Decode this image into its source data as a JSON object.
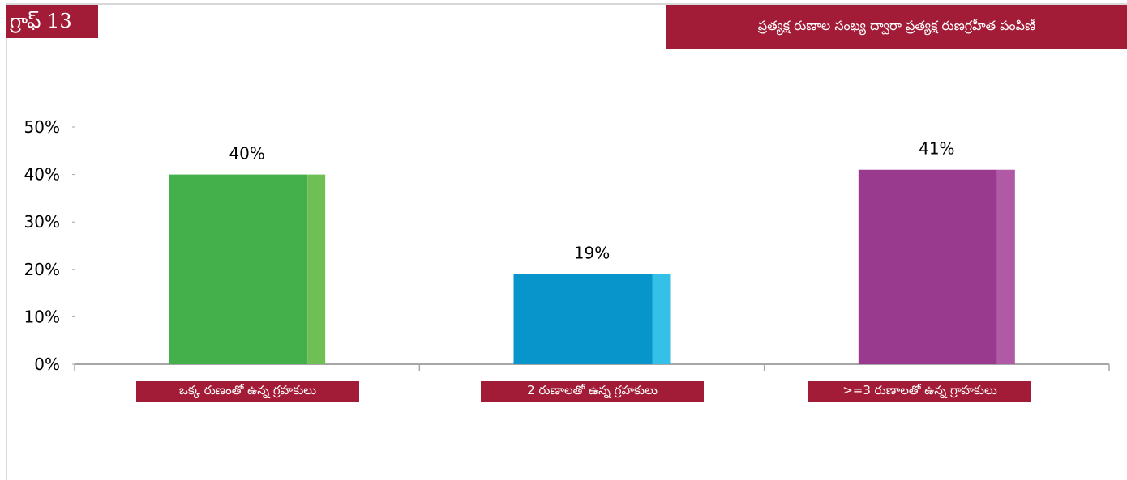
{
  "graph_label": "గ్రాఫ్ 13",
  "title": "ప్రత్యక్ష రుణాల సంఖ్య ద్వారా ప్రత్యక్ష రుణగ్రహీత పంపిణీ",
  "chart_data": {
    "type": "bar",
    "title": "ప్రత్యక్ష రుణాల సంఖ్య ద్వారా ప్రత్యక్ష రుణగ్రహీత పంపిణీ",
    "categories": [
      "ఒక్క రుణంతో ఉన్న గ్రహకులు",
      "2 రుణాలతో ఉన్న గ్రహకులు",
      ">=3 రుణాలతో ఉన్న గ్రాహకులు"
    ],
    "values": [
      40,
      19,
      41
    ],
    "data_labels": [
      "40%",
      "19%",
      "41%"
    ],
    "colors": [
      "#43b04b",
      "#0795cb",
      "#9a3a8f"
    ],
    "side_colors": [
      "#6fbf54",
      "#35c0e8",
      "#b05aa5"
    ],
    "ylim": [
      0,
      50
    ],
    "yticks": [
      0,
      10,
      20,
      30,
      40,
      50
    ],
    "ytick_labels": [
      "0%",
      "10%",
      "20%",
      "30%",
      "40%",
      "50%"
    ],
    "xlabel": "",
    "ylabel": "",
    "grid": false,
    "legend": "none"
  }
}
